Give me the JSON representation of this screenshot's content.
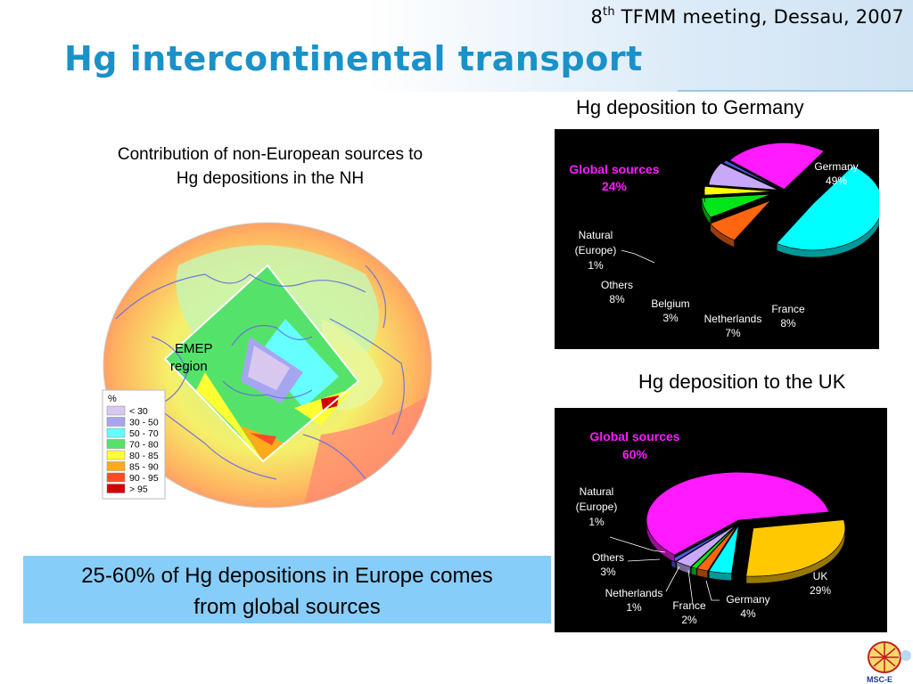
{
  "header": {
    "meeting_number": "8",
    "meeting_sup": "th",
    "meeting_rest": " TFMM meeting, Dessau, 2007",
    "title": "Hg intercontinental transport"
  },
  "map": {
    "caption_line1": "Contribution of non-European sources to",
    "caption_line2": "Hg depositions in the NH",
    "region_label_1": "EMEP",
    "region_label_2": "region",
    "legend": {
      "title": "%",
      "items": [
        {
          "label": "< 30",
          "color": "#d8c8f0"
        },
        {
          "label": "30 - 50",
          "color": "#a6a6f0"
        },
        {
          "label": "50 - 70",
          "color": "#66ffff"
        },
        {
          "label": "70 - 80",
          "color": "#55e26a"
        },
        {
          "label": "80 - 85",
          "color": "#ffff33"
        },
        {
          "label": "85 - 90",
          "color": "#ffaa1a"
        },
        {
          "label": "90 - 95",
          "color": "#ff4a26"
        },
        {
          "label": "> 95",
          "color": "#d40000"
        }
      ]
    }
  },
  "chart_data": [
    {
      "type": "pie",
      "title": "Hg deposition to Germany",
      "slices": [
        {
          "label": "Germany",
          "value": 49,
          "value_label": "49%",
          "color": "#00ffff"
        },
        {
          "label": "France",
          "value": 8,
          "value_label": "8%",
          "color": "#ff6610"
        },
        {
          "label": "Netherlands",
          "value": 7,
          "value_label": "7%",
          "color": "#00e619"
        },
        {
          "label": "Belgium",
          "value": 3,
          "value_label": "3%",
          "color": "#ffff00"
        },
        {
          "label": "Others",
          "value": 8,
          "value_label": "8%",
          "color": "#c8a8f8"
        },
        {
          "label": "Natural (Europe)",
          "value": 1,
          "value_label": "1%",
          "color": "#4d5ae6"
        },
        {
          "label": "Global sources",
          "value": 24,
          "value_label": "24%",
          "color": "#ff1aff"
        }
      ]
    },
    {
      "type": "pie",
      "title": "Hg deposition to the UK",
      "slices": [
        {
          "label": "UK",
          "value": 29,
          "value_label": "29%",
          "color": "#ffc800"
        },
        {
          "label": "Germany",
          "value": 4,
          "value_label": "4%",
          "color": "#00ffff"
        },
        {
          "label": "France",
          "value": 2,
          "value_label": "2%",
          "color": "#ff6610"
        },
        {
          "label": "Netherlands",
          "value": 1,
          "value_label": "1%",
          "color": "#00e619"
        },
        {
          "label": "Others",
          "value": 3,
          "value_label": "3%",
          "color": "#c8a8f8"
        },
        {
          "label": "Natural (Europe)",
          "value": 1,
          "value_label": "1%",
          "color": "#4d5ae6"
        },
        {
          "label": "Global sources",
          "value": 60,
          "value_label": "60%",
          "color": "#ff1aff"
        }
      ]
    }
  ],
  "conclusion": {
    "line1": "25-60% of Hg depositions in Europe comes",
    "line2": "from global sources"
  },
  "logo": {
    "text": "MSC-E"
  }
}
